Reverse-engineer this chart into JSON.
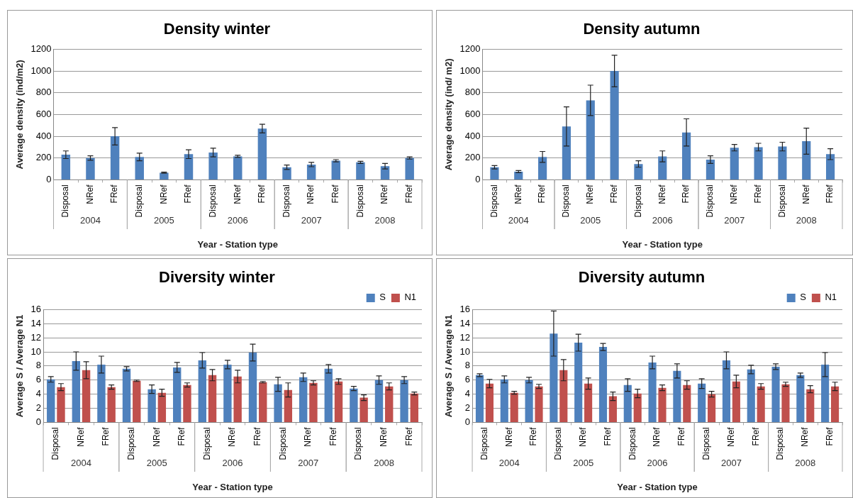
{
  "chart_data": [
    {
      "type": "bar",
      "title": "Density winter",
      "xlabel": "Year - Station type",
      "ylabel": "Average density (ind/m2)",
      "categories": [
        "Disposal",
        "NRef",
        "FRef",
        "Disposal",
        "NRef",
        "FRef",
        "Disposal",
        "NRef",
        "FRef",
        "Disposal",
        "NRef",
        "FRef",
        "Disposal",
        "NRef",
        "FRef"
      ],
      "series": [
        {
          "color": "#4f81bd",
          "values": [
            230,
            200,
            400,
            210,
            65,
            235,
            250,
            215,
            470,
            115,
            140,
            175,
            160,
            125,
            200
          ],
          "errors": [
            35,
            20,
            80,
            35,
            5,
            40,
            40,
            10,
            40,
            20,
            20,
            10,
            10,
            25,
            10
          ]
        }
      ],
      "ylim": [
        0,
        1200
      ],
      "yticks": [
        0,
        200,
        400,
        600,
        800,
        1000,
        1200
      ],
      "grid": "y",
      "annotations": [
        "2004",
        "2005",
        "2006",
        "2007",
        "2008"
      ]
    },
    {
      "type": "bar",
      "title": "Density autumn",
      "xlabel": "Year - Station type",
      "ylabel": "Average density (ind/ m2)",
      "categories": [
        "Disposal",
        "NRef",
        "FRef",
        "Disposal",
        "NRef",
        "FRef",
        "Disposal",
        "NRef",
        "FRef",
        "Disposal",
        "NRef",
        "FRef",
        "Disposal",
        "NRef",
        "FRef"
      ],
      "series": [
        {
          "color": "#4f81bd",
          "values": [
            115,
            75,
            210,
            490,
            730,
            1000,
            145,
            215,
            435,
            185,
            295,
            300,
            305,
            355,
            235
          ],
          "errors": [
            15,
            10,
            50,
            180,
            140,
            145,
            30,
            50,
            125,
            35,
            30,
            35,
            40,
            120,
            50
          ]
        }
      ],
      "ylim": [
        0,
        1200
      ],
      "yticks": [
        0,
        200,
        400,
        600,
        800,
        1000,
        1200
      ],
      "grid": "y",
      "annotations": [
        "2004",
        "2005",
        "2006",
        "2007",
        "2008"
      ]
    },
    {
      "type": "bar",
      "title": "Diversity winter",
      "xlabel": "Year - Station type",
      "ylabel": "Average S / Average N1",
      "categories": [
        "Disposal",
        "NRef",
        "FRef",
        "Disposal",
        "NRef",
        "FRef",
        "Disposal",
        "NRef",
        "FRef",
        "Disposal",
        "NRef",
        "FRef",
        "Disposal",
        "NRef",
        "FRef"
      ],
      "series": [
        {
          "name": "S",
          "color": "#4f81bd",
          "values": [
            6.1,
            8.7,
            8.2,
            7.6,
            4.7,
            7.8,
            8.8,
            8.2,
            9.9,
            5.4,
            6.4,
            7.6,
            4.8,
            6.0,
            6.0
          ],
          "errors": [
            0.4,
            1.3,
            1.2,
            0.3,
            0.6,
            0.7,
            1.1,
            0.6,
            1.2,
            1.0,
            0.6,
            0.6,
            0.3,
            0.6,
            0.5
          ]
        },
        {
          "name": "N1",
          "color": "#c0504d",
          "values": [
            5.0,
            7.4,
            5.0,
            5.9,
            4.2,
            5.3,
            6.7,
            6.5,
            5.7,
            4.6,
            5.6,
            5.8,
            3.5,
            5.1,
            4.1
          ],
          "errors": [
            0.5,
            1.2,
            0.3,
            0.1,
            0.5,
            0.3,
            0.8,
            0.9,
            0.1,
            1.0,
            0.3,
            0.4,
            0.4,
            0.5,
            0.2
          ]
        }
      ],
      "ylim": [
        0,
        16
      ],
      "yticks": [
        0,
        2,
        4,
        6,
        8,
        10,
        12,
        14,
        16
      ],
      "grid": "y",
      "legend": "top right",
      "annotations": [
        "2004",
        "2005",
        "2006",
        "2007",
        "2008"
      ]
    },
    {
      "type": "bar",
      "title": "Diversity autumn",
      "xlabel": "Year - Station type",
      "ylabel": "Average S / Average N1",
      "categories": [
        "Disposal",
        "NRef",
        "FRef",
        "Disposal",
        "NRef",
        "FRef",
        "Disposal",
        "NRef",
        "FRef",
        "Disposal",
        "NRef",
        "FRef",
        "Disposal",
        "NRef",
        "FRef"
      ],
      "series": [
        {
          "name": "S",
          "color": "#4f81bd",
          "values": [
            6.7,
            6.1,
            6.0,
            12.6,
            11.3,
            10.7,
            5.3,
            8.5,
            7.3,
            5.5,
            8.8,
            7.5,
            7.9,
            6.7,
            8.2
          ],
          "errors": [
            0.2,
            0.5,
            0.4,
            3.2,
            1.2,
            0.5,
            0.9,
            0.9,
            1.0,
            0.7,
            1.2,
            0.6,
            0.4,
            0.3,
            1.7
          ]
        },
        {
          "name": "N1",
          "color": "#c0504d",
          "values": [
            5.5,
            4.2,
            5.1,
            7.4,
            5.5,
            3.7,
            4.1,
            4.9,
            5.3,
            4.0,
            5.8,
            5.1,
            5.4,
            4.7,
            5.1
          ],
          "errors": [
            0.6,
            0.2,
            0.3,
            1.5,
            0.8,
            0.6,
            0.6,
            0.4,
            0.6,
            0.4,
            0.9,
            0.4,
            0.3,
            0.5,
            0.6
          ]
        }
      ],
      "ylim": [
        0,
        16
      ],
      "yticks": [
        0,
        2,
        4,
        6,
        8,
        10,
        12,
        14,
        16
      ],
      "grid": "y",
      "legend": "top right",
      "annotations": [
        "2004",
        "2005",
        "2006",
        "2007",
        "2008"
      ]
    }
  ]
}
